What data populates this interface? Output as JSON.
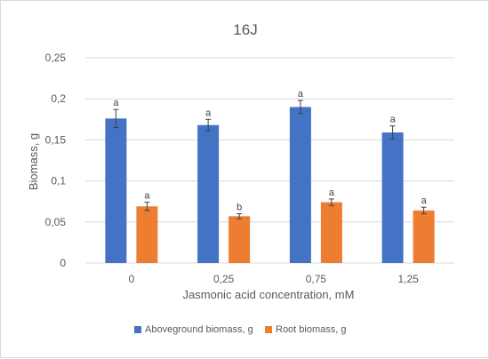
{
  "chart_data": {
    "type": "bar",
    "title": "16J",
    "xlabel": "Jasmonic acid concentration, mM",
    "ylabel": "Biomass, g",
    "categories": [
      "0",
      "0,25",
      "0,75",
      "1,25"
    ],
    "ylim": [
      0,
      0.25
    ],
    "yticks": [
      0,
      0.05,
      0.1,
      0.15,
      0.2,
      0.25
    ],
    "ytick_labels": [
      "0",
      "0,05",
      "0,1",
      "0,15",
      "0,2",
      "0,25"
    ],
    "grid": true,
    "legend_position": "bottom",
    "series": [
      {
        "name": "Aboveground biomass, g",
        "color": "#4472C4",
        "values": [
          0.176,
          0.168,
          0.19,
          0.159
        ],
        "errors": [
          0.011,
          0.007,
          0.008,
          0.008
        ],
        "labels": [
          "a",
          "a",
          "a",
          "a"
        ]
      },
      {
        "name": "Root biomass, g",
        "color": "#ED7D31",
        "values": [
          0.069,
          0.057,
          0.074,
          0.064
        ],
        "errors": [
          0.005,
          0.003,
          0.004,
          0.004
        ],
        "labels": [
          "a",
          "b",
          "a",
          "a"
        ]
      }
    ]
  }
}
